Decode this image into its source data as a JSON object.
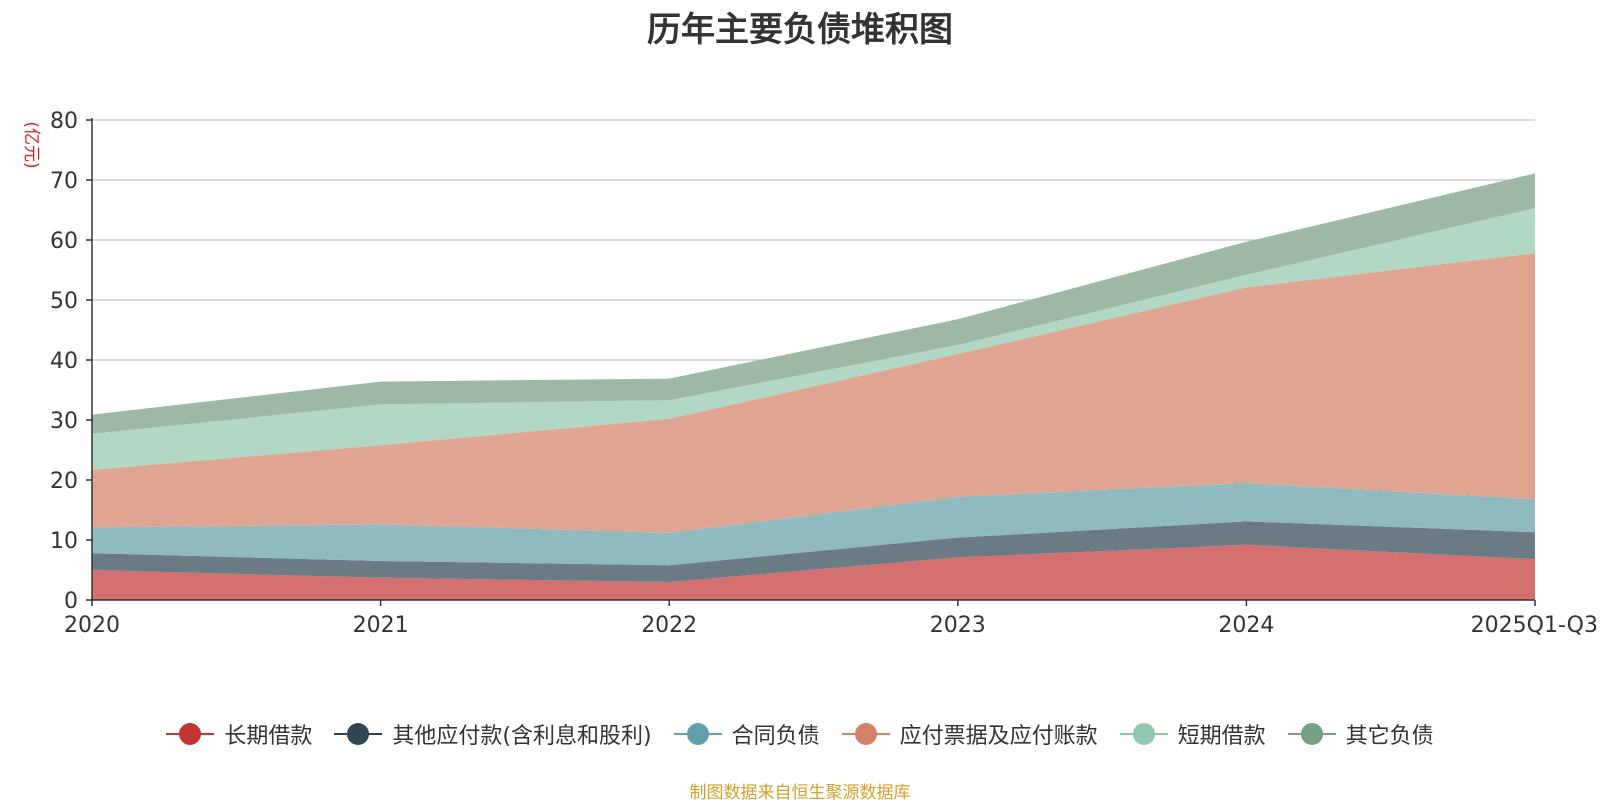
{
  "chart_data": {
    "type": "area",
    "stacked": true,
    "title": "历年主要负债堆积图",
    "ylabel": "(亿元)",
    "xlabel": "",
    "categories": [
      "2020",
      "2021",
      "2022",
      "2023",
      "2024",
      "2025Q1-Q3"
    ],
    "ylim": [
      0,
      80
    ],
    "yticks": [
      0,
      10,
      20,
      30,
      40,
      50,
      60,
      70,
      80
    ],
    "grid": true,
    "legend_position": "bottom",
    "series": [
      {
        "name": "长期借款",
        "color": "#c23531",
        "fill": "#d4706d",
        "values": [
          5,
          3.7,
          3,
          7.1,
          9.2,
          6.8
        ]
      },
      {
        "name": "其他应付款(含利息和股利)",
        "color": "#2f4554",
        "fill": "#6b7b85",
        "values": [
          2.8,
          2.8,
          2.8,
          3.3,
          3.9,
          4.5
        ]
      },
      {
        "name": "合同负债",
        "color": "#61a0a8",
        "fill": "#8fbac0",
        "values": [
          4.3,
          6.1,
          5.4,
          6.8,
          6.4,
          5.5
        ]
      },
      {
        "name": "应付票据及应付账款",
        "color": "#d48265",
        "fill": "#e0a590",
        "values": [
          9.6,
          13.2,
          19,
          23.8,
          32.6,
          41
        ]
      },
      {
        "name": "短期借款",
        "color": "#91c7ae",
        "fill": "#b1d8c5",
        "values": [
          6,
          6.8,
          3.1,
          1.5,
          2.1,
          7.5
        ]
      },
      {
        "name": "其它负债",
        "color": "#749f83",
        "fill": "#9db8a5",
        "values": [
          3.2,
          3.8,
          3.6,
          4.3,
          5.5,
          5.8
        ]
      }
    ]
  },
  "source_note": "制图数据来自恒生聚源数据库"
}
